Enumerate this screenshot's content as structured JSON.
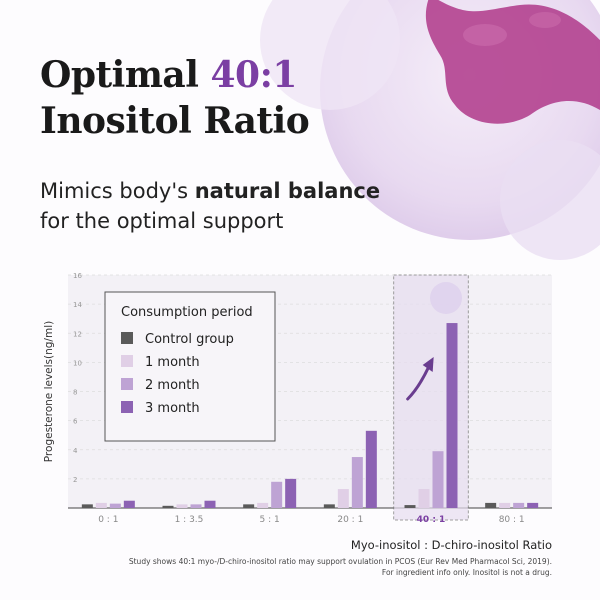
{
  "headline": {
    "line1_prefix": "Optimal ",
    "line1_accent": "40:1",
    "line2": "Inositol Ratio"
  },
  "subheading": {
    "prefix": "Mimics body's ",
    "bold": "natural balance",
    "line2": "for the optimal support"
  },
  "colors": {
    "accent": "#7b3fa3",
    "control": "#5a5a5a",
    "m1": "#e0cfe6",
    "m2": "#bea3d4",
    "m3": "#8c62b3"
  },
  "chart_data": {
    "type": "bar",
    "ylabel": "Progesterone levels(ng/ml)",
    "xlabel": "Myo-inositol : D-chiro-inositol Ratio",
    "ylim": [
      0,
      16
    ],
    "yticks": [
      2,
      4,
      6,
      8,
      10,
      12,
      14,
      16
    ],
    "categories": [
      "0 : 1",
      "1 : 3.5",
      "5 : 1",
      "20 : 1",
      "40 : 1",
      "80 : 1"
    ],
    "highlight_category": "40 : 1",
    "legend_title": "Consumption period",
    "series": [
      {
        "name": "Control group",
        "color": "#5a5a5a",
        "values": [
          0.25,
          0.15,
          0.25,
          0.25,
          0.2,
          0.35
        ]
      },
      {
        "name": "1 month",
        "color": "#e0cfe6",
        "values": [
          0.35,
          0.25,
          0.35,
          1.3,
          1.3,
          0.35
        ]
      },
      {
        "name": "2 month",
        "color": "#bea3d4",
        "values": [
          0.3,
          0.25,
          1.8,
          3.5,
          3.9,
          0.35
        ]
      },
      {
        "name": "3 month",
        "color": "#8c62b3",
        "values": [
          0.5,
          0.5,
          2.0,
          5.3,
          12.7,
          0.35
        ]
      }
    ],
    "grid": true,
    "legend_position": "top-left"
  },
  "footnote": {
    "line1": "Study shows 40:1 myo-/D-chiro-inositol ratio may support ovulation in PCOS (Eur Rev Med Pharmacol Sci, 2019).",
    "line2": "For ingredient info only. Inositol is not a drug."
  }
}
